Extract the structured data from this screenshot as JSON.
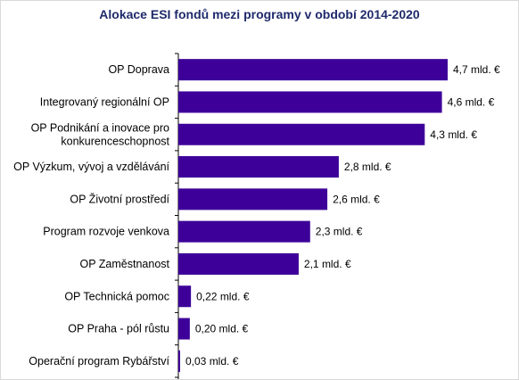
{
  "chart_data": {
    "type": "bar",
    "orientation": "horizontal",
    "title": "Alokace ESI fondů mezi programy v období 2014-2020",
    "xlabel": "",
    "ylabel": "",
    "unit": "mld. €",
    "xlim": [
      0,
      4.7
    ],
    "grid": false,
    "legend": "none",
    "bar_color": "#3d0099",
    "categories": [
      [
        "OP Doprava"
      ],
      [
        "Integrovaný regionální OP"
      ],
      [
        "OP Podnikání a inovace pro",
        "konkurenceschopnost"
      ],
      [
        "OP Výzkum, vývoj a vzdělávání"
      ],
      [
        "OP Životní prostředí"
      ],
      [
        "Program rozvoje venkova"
      ],
      [
        "OP Zaměstnanost"
      ],
      [
        "OP Technická pomoc"
      ],
      [
        "OP Praha - pól růstu"
      ],
      [
        "Operační program Rybářství"
      ]
    ],
    "values": [
      4.7,
      4.6,
      4.3,
      2.8,
      2.6,
      2.3,
      2.1,
      0.22,
      0.2,
      0.03
    ],
    "value_labels": [
      "4,7 mld. €",
      "4,6 mld. €",
      "4,3 mld. €",
      "2,8 mld. €",
      "2,6 mld. €",
      "2,3 mld. €",
      "2,1 mld. €",
      "0,22 mld. €",
      "0,20 mld. €",
      "0,03 mld. €"
    ]
  }
}
